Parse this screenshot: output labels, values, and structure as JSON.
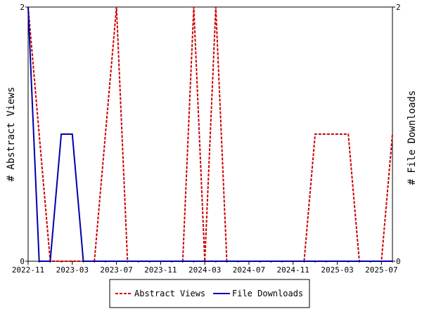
{
  "chart_data": {
    "type": "line",
    "ylabel": "# Abstract Views",
    "y2label": "# File Downloads",
    "ylim": [
      0,
      2
    ],
    "y2lim": [
      0,
      2
    ],
    "yticks": [
      "0",
      "2"
    ],
    "y2ticks": [
      "0",
      "2"
    ],
    "xticks": [
      "2022-11",
      "2023-03",
      "2023-07",
      "2023-11",
      "2024-03",
      "2024-07",
      "2024-11",
      "2025-03",
      "2025-07"
    ],
    "x": [
      "2022-11",
      "2022-12",
      "2023-01",
      "2023-02",
      "2023-03",
      "2023-04",
      "2023-05",
      "2023-06",
      "2023-07",
      "2023-08",
      "2023-09",
      "2023-10",
      "2023-11",
      "2023-12",
      "2024-01",
      "2024-02",
      "2024-03",
      "2024-04",
      "2024-05",
      "2024-06",
      "2024-07",
      "2024-08",
      "2024-09",
      "2024-10",
      "2024-11",
      "2024-12",
      "2025-01",
      "2025-02",
      "2025-03",
      "2025-04",
      "2025-05",
      "2025-06",
      "2025-07",
      "2025-08"
    ],
    "series": [
      {
        "name": "Abstract Views",
        "color": "#cc0000",
        "dash": "dashed",
        "axis": "left",
        "values": [
          2,
          1,
          0,
          0,
          0,
          0,
          0,
          1,
          2,
          0,
          0,
          0,
          0,
          0,
          0,
          2,
          0,
          2,
          0,
          0,
          0,
          0,
          0,
          0,
          0,
          0,
          1,
          1,
          1,
          1,
          0,
          0,
          0,
          1
        ]
      },
      {
        "name": "File Downloads",
        "color": "#0000aa",
        "dash": "solid",
        "axis": "right",
        "values": [
          2,
          0,
          0,
          1,
          1,
          0,
          0,
          0,
          0,
          0,
          0,
          0,
          0,
          0,
          0,
          0,
          0,
          0,
          0,
          0,
          0,
          0,
          0,
          0,
          0,
          0,
          0,
          0,
          0,
          0,
          0,
          0,
          0,
          0
        ]
      }
    ],
    "legend": {
      "position": "bottom-center",
      "entries": [
        "Abstract Views",
        "File Downloads"
      ]
    },
    "grid": false
  }
}
